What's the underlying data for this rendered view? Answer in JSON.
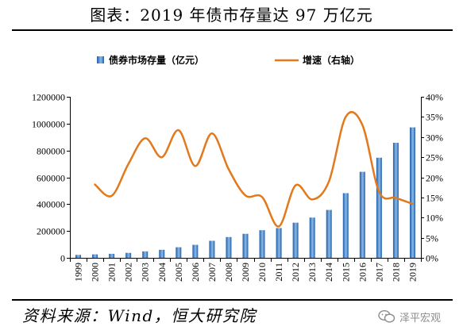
{
  "colors": {
    "bar_dark": "#1f5ea8",
    "bar_light": "#8dbbe9",
    "line": "#e2791d",
    "axis": "#000000",
    "text": "#000000",
    "watermark": "#8c8c8c"
  },
  "source": "资料来源：Wind，恒大研究院",
  "watermark": {
    "icon": "wechat-icon",
    "text": "泽平宏观"
  },
  "chart_data": {
    "type": "bar",
    "title": "图表：2019 年债市存量达 97 万亿元",
    "legend": "top",
    "grid": false,
    "categories": [
      "1999",
      "2000",
      "2001",
      "2002",
      "2003",
      "2004",
      "2005",
      "2006",
      "2007",
      "2008",
      "2009",
      "2010",
      "2011",
      "2012",
      "2013",
      "2014",
      "2015",
      "2016",
      "2017",
      "2018",
      "2019"
    ],
    "series": [
      {
        "name": "债券市场存量（亿元）",
        "type": "bar",
        "y_axis": "left",
        "values": [
          22000,
          26000,
          30000,
          37000,
          48000,
          60000,
          79000,
          97000,
          127000,
          155000,
          179000,
          206000,
          222000,
          262000,
          300000,
          357000,
          482000,
          641000,
          746000,
          857000,
          972000
        ]
      },
      {
        "name": "增速（右轴）",
        "type": "line",
        "y_axis": "right",
        "unit": "%",
        "values": [
          null,
          18.2,
          15.4,
          23.3,
          29.7,
          25.0,
          31.7,
          22.8,
          30.9,
          22.0,
          15.5,
          15.1,
          7.8,
          18.0,
          14.5,
          19.0,
          35.0,
          33.0,
          16.4,
          14.9,
          13.4
        ]
      }
    ],
    "y_left": {
      "min": 0,
      "max": 1200000,
      "ticks": [
        0,
        200000,
        400000,
        600000,
        800000,
        1000000,
        1200000
      ],
      "tick_labels": [
        "0",
        "200000",
        "400000",
        "600000",
        "800000",
        "1000000",
        "1200000"
      ]
    },
    "y_right": {
      "min": 0,
      "max": 40,
      "ticks": [
        0,
        5,
        10,
        15,
        20,
        25,
        30,
        35,
        40
      ],
      "tick_labels": [
        "0%",
        "5%",
        "10%",
        "15%",
        "20%",
        "25%",
        "30%",
        "35%",
        "40%"
      ]
    }
  }
}
